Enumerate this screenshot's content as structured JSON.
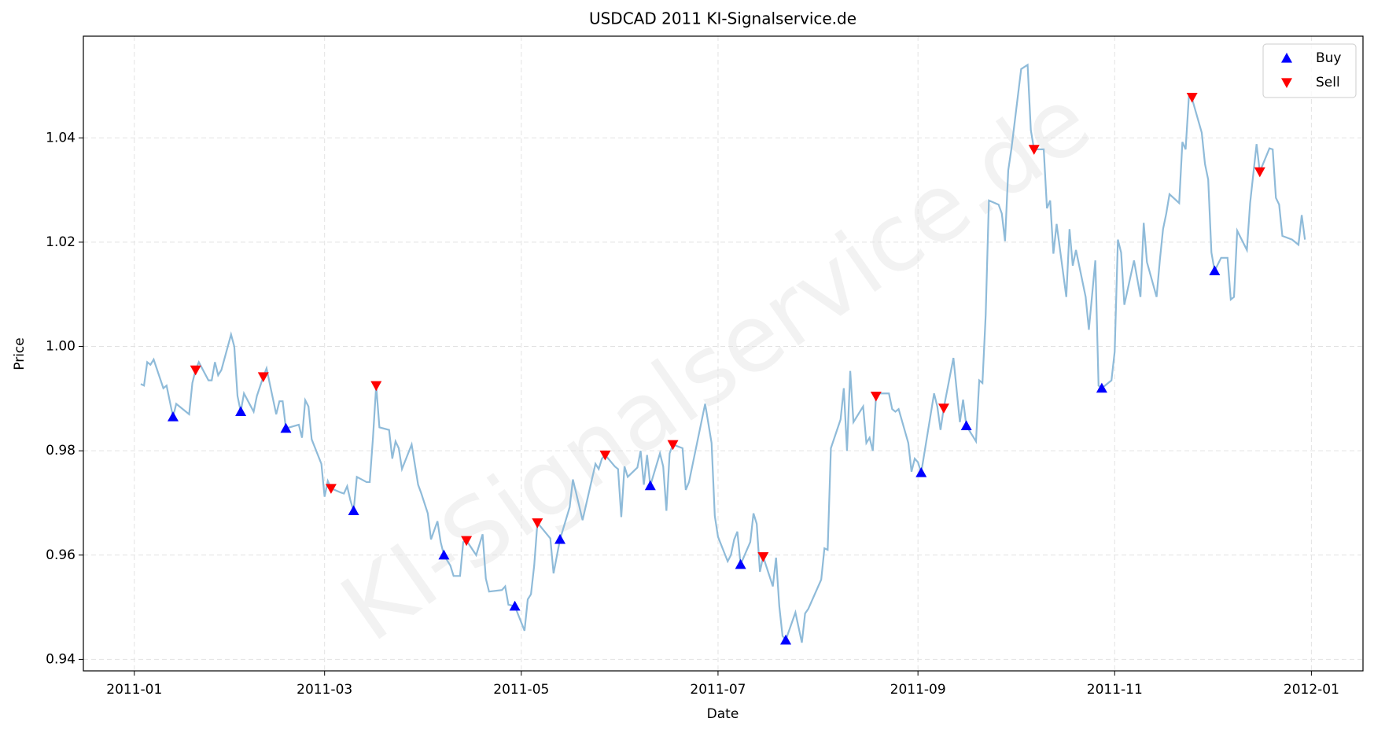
{
  "chart_data": {
    "type": "line",
    "title": "USDCAD 2011 KI-Signalservice.de",
    "xlabel": "Date",
    "ylabel": "Price",
    "watermark": "KI-Signalservice.de",
    "color": "#8fbbd9",
    "x": [
      2,
      3,
      4,
      5,
      6,
      9,
      10,
      12,
      13,
      17,
      18,
      19,
      20,
      23,
      24,
      25,
      26,
      27,
      30,
      31,
      32,
      33,
      34,
      37,
      38,
      40,
      41,
      44,
      45,
      46,
      47,
      51,
      52,
      53,
      54,
      55,
      58,
      59,
      60,
      61,
      64,
      65,
      66,
      67,
      68,
      69,
      72,
      73,
      74,
      75,
      76,
      79,
      80,
      81,
      82,
      83,
      86,
      88,
      89,
      91,
      92,
      94,
      95,
      96,
      98,
      99,
      101,
      102,
      103,
      106,
      108,
      109,
      110,
      114,
      115,
      116,
      118,
      121,
      122,
      123,
      124,
      125,
      129,
      130,
      132,
      135,
      136,
      139,
      143,
      144,
      145,
      146,
      149,
      150,
      151,
      152,
      153,
      156,
      157,
      158,
      159,
      160,
      163,
      164,
      165,
      166,
      167,
      170,
      171,
      172,
      177,
      179,
      180,
      181,
      184,
      185,
      186,
      187,
      188,
      191,
      192,
      193,
      194,
      195,
      198,
      199,
      200,
      201,
      202,
      205,
      207,
      208,
      209,
      213,
      214,
      215,
      216,
      219,
      220,
      221,
      222,
      223,
      226,
      227,
      228,
      229,
      230,
      231,
      234,
      235,
      236,
      237,
      240,
      241,
      242,
      243,
      244,
      248,
      249,
      250,
      251,
      254,
      256,
      257,
      258,
      261,
      262,
      263,
      264,
      265,
      268,
      269,
      270,
      271,
      272,
      275,
      277,
      278,
      279,
      280,
      282,
      283,
      284,
      285,
      286,
      289,
      290,
      291,
      292,
      295,
      296,
      298,
      299,
      300,
      303,
      304,
      305,
      306,
      307,
      310,
      312,
      313,
      314,
      317,
      318,
      319,
      320,
      321,
      324,
      325,
      326,
      327,
      328,
      331,
      332,
      333,
      334,
      335,
      337,
      339,
      340,
      341,
      342,
      345,
      346,
      348,
      349,
      352,
      353,
      354,
      355,
      356,
      359,
      361,
      362,
      363
    ],
    "values": [
      0.9928,
      0.9925,
      0.997,
      0.9965,
      0.9975,
      0.992,
      0.9925,
      0.9865,
      0.989,
      0.987,
      0.993,
      0.9955,
      0.997,
      0.9935,
      0.9935,
      0.997,
      0.9945,
      0.9955,
      1.0023,
      1.0,
      0.9905,
      0.9875,
      0.991,
      0.9875,
      0.9905,
      0.9942,
      0.9958,
      0.987,
      0.9895,
      0.9895,
      0.9843,
      0.985,
      0.9825,
      0.9897,
      0.9885,
      0.9822,
      0.9775,
      0.9712,
      0.9742,
      0.9728,
      0.972,
      0.9718,
      0.9732,
      0.9705,
      0.9685,
      0.975,
      0.974,
      0.974,
      0.9825,
      0.9925,
      0.9845,
      0.984,
      0.9785,
      0.9818,
      0.9805,
      0.9765,
      0.9812,
      0.9735,
      0.9718,
      0.968,
      0.963,
      0.9665,
      0.9625,
      0.96,
      0.958,
      0.956,
      0.956,
      0.9625,
      0.9628,
      0.96,
      0.964,
      0.9555,
      0.953,
      0.9533,
      0.954,
      0.9505,
      0.9502,
      0.9455,
      0.9515,
      0.9525,
      0.958,
      0.9662,
      0.9632,
      0.9565,
      0.963,
      0.9692,
      0.9745,
      0.9667,
      0.9775,
      0.9765,
      0.9785,
      0.9792,
      0.977,
      0.9765,
      0.9673,
      0.977,
      0.975,
      0.9768,
      0.98,
      0.9735,
      0.9792,
      0.9733,
      0.9795,
      0.977,
      0.9685,
      0.9795,
      0.9812,
      0.9805,
      0.9725,
      0.974,
      0.989,
      0.9815,
      0.9675,
      0.9635,
      0.9588,
      0.96,
      0.963,
      0.9645,
      0.9582,
      0.9625,
      0.968,
      0.966,
      0.9568,
      0.9597,
      0.954,
      0.9595,
      0.9502,
      0.9445,
      0.9437,
      0.949,
      0.9432,
      0.9488,
      0.9497,
      0.9553,
      0.9613,
      0.961,
      0.9805,
      0.986,
      0.992,
      0.98,
      0.9953,
      0.9855,
      0.9885,
      0.9815,
      0.9825,
      0.98,
      0.9905,
      0.991,
      0.991,
      0.988,
      0.9875,
      0.988,
      0.9815,
      0.976,
      0.9785,
      0.9778,
      0.9758,
      0.991,
      0.9885,
      0.984,
      0.9882,
      0.9978,
      0.9855,
      0.9898,
      0.9848,
      0.9818,
      0.9935,
      0.993,
      1.006,
      1.028,
      1.0272,
      1.0255,
      1.0202,
      1.0338,
      1.038,
      1.0532,
      1.054,
      1.0415,
      1.0378,
      1.0378,
      1.0378,
      1.0265,
      1.028,
      1.0178,
      1.0235,
      1.0095,
      1.0225,
      1.0155,
      1.0185,
      1.0095,
      1.0032,
      1.0165,
      0.9925,
      0.992,
      0.9935,
      0.999,
      1.0205,
      1.018,
      1.008,
      1.0165,
      1.0095,
      1.0237,
      1.0162,
      1.0095,
      1.0165,
      1.0225,
      1.0255,
      1.0292,
      1.0275,
      1.0392,
      1.0378,
      1.0478,
      1.0475,
      1.041,
      1.035,
      1.032,
      1.018,
      1.0145,
      1.017,
      1.017,
      1.009,
      1.0095,
      1.0222,
      1.0185,
      1.0275,
      1.0388,
      1.0335,
      1.038,
      1.0378,
      1.0285,
      1.0272,
      1.0212,
      1.0205,
      1.0195,
      1.0252,
      1.0205
    ],
    "series": [
      {
        "name": "Buy",
        "marker": "triangle-up",
        "color": "#0000ff",
        "x": [
          12,
          33,
          47,
          68,
          96,
          118,
          132,
          160,
          188,
          202,
          244,
          258,
          300,
          335
        ],
        "values": [
          0.9865,
          0.9875,
          0.9843,
          0.9685,
          0.96,
          0.9502,
          0.963,
          0.9733,
          0.9582,
          0.9437,
          0.9758,
          0.9848,
          0.992,
          1.0145
        ]
      },
      {
        "name": "Sell",
        "marker": "triangle-down",
        "color": "#ff0000",
        "x": [
          19,
          40,
          61,
          75,
          103,
          125,
          146,
          167,
          195,
          230,
          251,
          279,
          328,
          349
        ],
        "values": [
          0.9955,
          0.9942,
          0.9728,
          0.9925,
          0.9628,
          0.9662,
          0.9792,
          0.9812,
          0.9597,
          0.9905,
          0.9882,
          1.0378,
          1.0478,
          1.0335
        ]
      }
    ],
    "xlim": [
      -15.8,
      381
    ],
    "xticks": [
      {
        "value": 0,
        "label": "2011-01"
      },
      {
        "value": 59,
        "label": "2011-03"
      },
      {
        "value": 120,
        "label": "2011-05"
      },
      {
        "value": 181,
        "label": "2011-07"
      },
      {
        "value": 243,
        "label": "2011-09"
      },
      {
        "value": 304,
        "label": "2011-11"
      },
      {
        "value": 365,
        "label": "2012-01"
      }
    ],
    "ylim": [
      0.9378,
      1.0595
    ],
    "yticks": [
      0.94,
      0.96,
      0.98,
      {
        "value": 1,
        "label": "1.00"
      },
      1.02,
      1.04
    ],
    "grid": true,
    "legend": "upper right"
  }
}
